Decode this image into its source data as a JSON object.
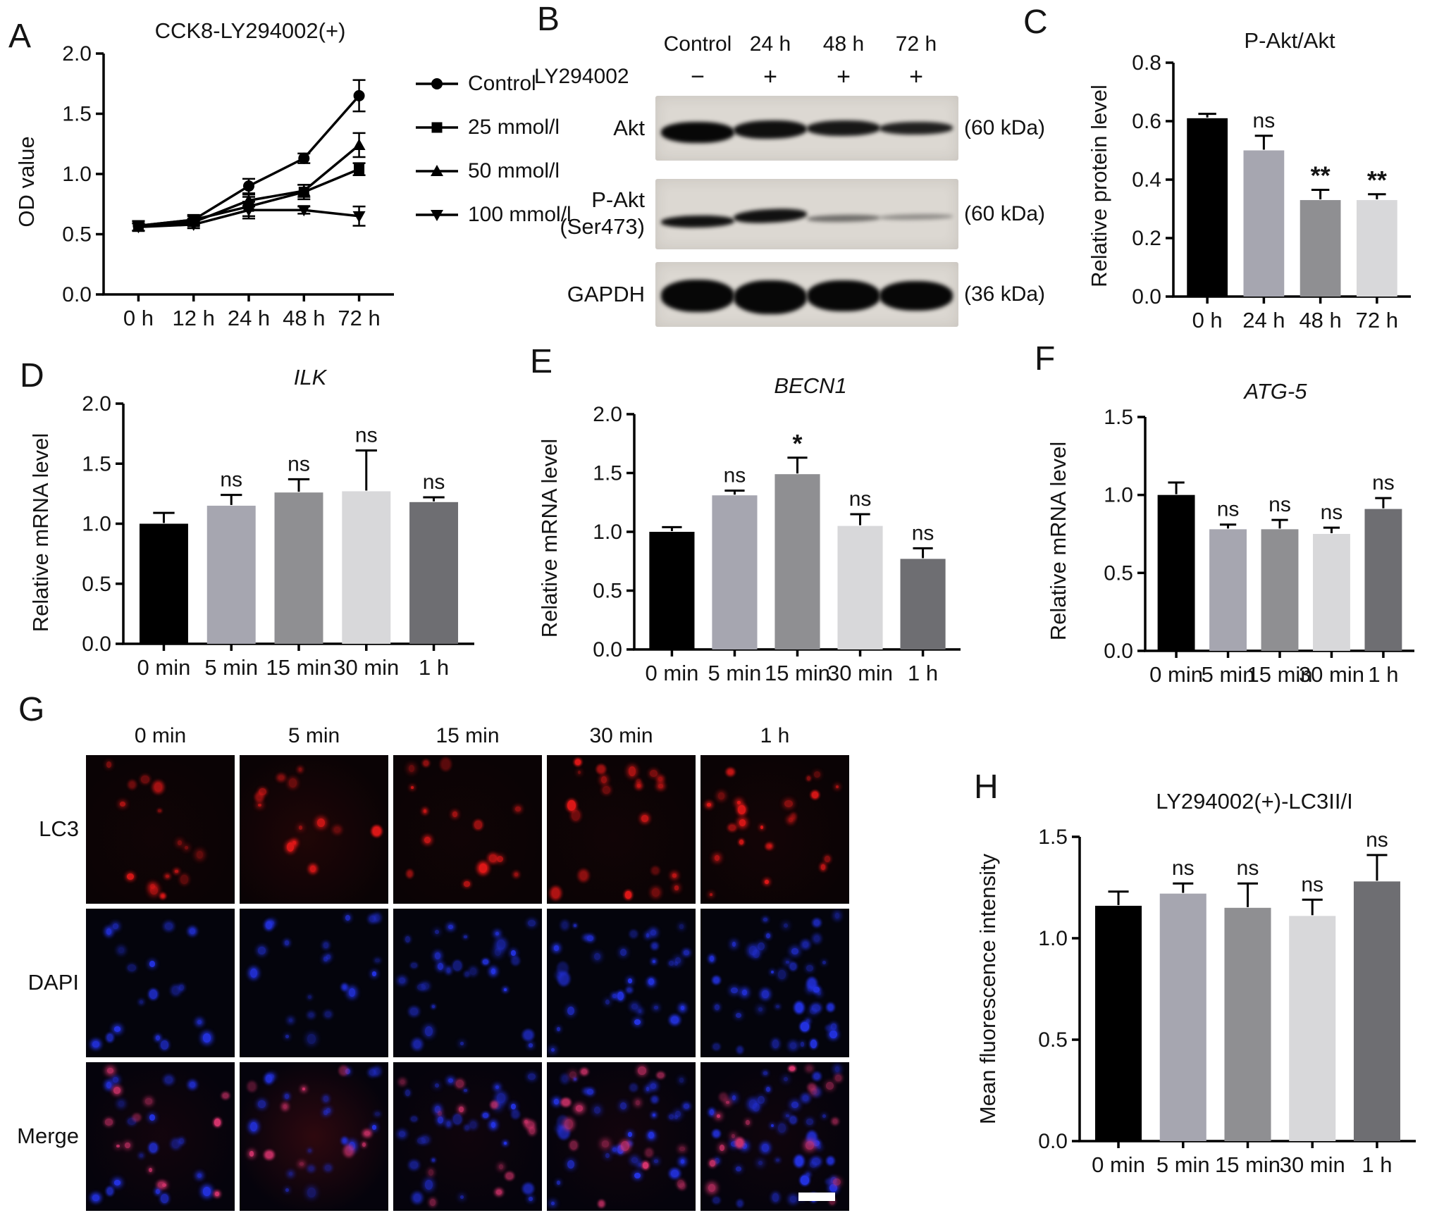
{
  "figure": {
    "background": "#ffffff"
  },
  "panels": {
    "a": {
      "letter": "A"
    },
    "b": {
      "letter": "B"
    },
    "c": {
      "letter": "C"
    },
    "d": {
      "letter": "D"
    },
    "e": {
      "letter": "E"
    },
    "f": {
      "letter": "F"
    },
    "g": {
      "letter": "G"
    },
    "h": {
      "letter": "H"
    }
  },
  "chart_data": [
    {
      "id": "A",
      "type": "line",
      "title": "CCK8-LY294002(+)",
      "ylabel": "OD value",
      "xlabel": "",
      "ylim": [
        0,
        2.0
      ],
      "yticks": [
        0,
        0.5,
        1.0,
        1.5,
        2.0
      ],
      "ytick_labels": [
        "0.0",
        "0.5",
        "1.0",
        "1.5",
        "2.0"
      ],
      "categories": [
        "0 h",
        "12 h",
        "24 h",
        "48 h",
        "72 h"
      ],
      "legend_position": "right",
      "series": [
        {
          "name": "Control",
          "marker": "circle",
          "values": [
            0.57,
            0.62,
            0.9,
            1.13,
            1.65
          ],
          "errors": [
            0.04,
            0.03,
            0.06,
            0.04,
            0.13
          ]
        },
        {
          "name": "25 mmol/l",
          "marker": "square",
          "values": [
            0.57,
            0.62,
            0.73,
            0.85,
            1.04
          ],
          "errors": [
            0.04,
            0.04,
            0.08,
            0.06,
            0.05
          ]
        },
        {
          "name": "50 mmol/l",
          "marker": "triangle-up",
          "values": [
            0.56,
            0.6,
            0.78,
            0.86,
            1.24
          ],
          "errors": [
            0.03,
            0.03,
            0.05,
            0.05,
            0.1
          ]
        },
        {
          "name": "100 mmol/l",
          "marker": "triangle-down",
          "values": [
            0.56,
            0.58,
            0.7,
            0.7,
            0.65
          ],
          "errors": [
            0.03,
            0.03,
            0.07,
            0.03,
            0.08
          ]
        }
      ]
    },
    {
      "id": "C",
      "type": "bar",
      "title": "P-Akt/Akt",
      "ylabel": "Relative protein level",
      "xlabel": "",
      "ylim": [
        0,
        0.8
      ],
      "yticks": [
        0,
        0.2,
        0.4,
        0.6,
        0.8
      ],
      "ytick_labels": [
        "0.0",
        "0.2",
        "0.4",
        "0.6",
        "0.8"
      ],
      "categories": [
        "0 h",
        "24 h",
        "48 h",
        "72 h"
      ],
      "values": [
        0.61,
        0.5,
        0.33,
        0.33
      ],
      "errors": [
        0.015,
        0.05,
        0.035,
        0.02
      ],
      "sig": [
        "",
        "ns",
        "**",
        "**"
      ],
      "colors": [
        "#000000",
        "#a6a6b0",
        "#8f8f92",
        "#d8d8da"
      ]
    },
    {
      "id": "D",
      "type": "bar",
      "title": "ILK",
      "title_italic": true,
      "ylabel": "Relative mRNA level",
      "xlabel": "",
      "ylim": [
        0,
        2.0
      ],
      "yticks": [
        0,
        0.5,
        1.0,
        1.5,
        2.0
      ],
      "ytick_labels": [
        "0.0",
        "0.5",
        "1.0",
        "1.5",
        "2.0"
      ],
      "categories": [
        "0 min",
        "5 min",
        "15 min",
        "30 min",
        "1 h"
      ],
      "values": [
        1.0,
        1.15,
        1.26,
        1.27,
        1.18
      ],
      "errors": [
        0.09,
        0.09,
        0.11,
        0.34,
        0.04
      ],
      "sig": [
        "",
        "ns",
        "ns",
        "ns",
        "ns"
      ],
      "colors": [
        "#000000",
        "#a6a6b0",
        "#8f8f92",
        "#d8d8da",
        "#6e6e72"
      ]
    },
    {
      "id": "E",
      "type": "bar",
      "title": "BECN1",
      "title_italic": true,
      "ylabel": "Relative mRNA level",
      "xlabel": "",
      "ylim": [
        0,
        2.0
      ],
      "yticks": [
        0,
        0.5,
        1.0,
        1.5,
        2.0
      ],
      "ytick_labels": [
        "0.0",
        "0.5",
        "1.0",
        "1.5",
        "2.0"
      ],
      "categories": [
        "0 min",
        "5 min",
        "15 min",
        "30 min",
        "1 h"
      ],
      "values": [
        1.0,
        1.31,
        1.49,
        1.05,
        0.77
      ],
      "errors": [
        0.04,
        0.04,
        0.14,
        0.1,
        0.09
      ],
      "sig": [
        "",
        "ns",
        "*",
        "ns",
        "ns"
      ],
      "colors": [
        "#000000",
        "#a6a6b0",
        "#8f8f92",
        "#d8d8da",
        "#6e6e72"
      ]
    },
    {
      "id": "F",
      "type": "bar",
      "title": "ATG-5",
      "title_italic": true,
      "ylabel": "Relative mRNA level",
      "xlabel": "",
      "ylim": [
        0,
        1.5
      ],
      "yticks": [
        0,
        0.5,
        1.0,
        1.5
      ],
      "ytick_labels": [
        "0.0",
        "0.5",
        "1.0",
        "1.5"
      ],
      "categories": [
        "0 min",
        "5 min",
        "15 min",
        "30 min",
        "1 h"
      ],
      "values": [
        1.0,
        0.78,
        0.78,
        0.75,
        0.91
      ],
      "errors": [
        0.08,
        0.03,
        0.06,
        0.04,
        0.07
      ],
      "sig": [
        "",
        "ns",
        "ns",
        "ns",
        "ns"
      ],
      "colors": [
        "#000000",
        "#a6a6b0",
        "#8f8f92",
        "#d8d8da",
        "#6e6e72"
      ]
    },
    {
      "id": "H",
      "type": "bar",
      "title": "LY294002(+)-LC3II/I",
      "ylabel": "Mean fluorescence intensity",
      "xlabel": "",
      "ylim": [
        0,
        1.5
      ],
      "yticks": [
        0,
        0.5,
        1.0,
        1.5
      ],
      "ytick_labels": [
        "0.0",
        "0.5",
        "1.0",
        "1.5"
      ],
      "categories": [
        "0 min",
        "5 min",
        "15 min",
        "30 min",
        "1 h"
      ],
      "values": [
        1.16,
        1.22,
        1.15,
        1.11,
        1.28
      ],
      "errors": [
        0.07,
        0.05,
        0.12,
        0.08,
        0.13
      ],
      "sig": [
        "",
        "ns",
        "ns",
        "ns",
        "ns"
      ],
      "colors": [
        "#000000",
        "#a6a6b0",
        "#8f8f92",
        "#d8d8da",
        "#6e6e72"
      ]
    }
  ],
  "western_blot": {
    "treatment_label": "LY294002",
    "col_headers": [
      "Control",
      "24 h",
      "48 h",
      "72 h"
    ],
    "treatment_signs": [
      "−",
      "+",
      "+",
      "+"
    ],
    "rows": [
      {
        "label": "Akt",
        "sublabel": "",
        "kda": "(60 kDa)",
        "band_thickness": [
          30,
          26,
          22,
          18
        ],
        "band_opacity": [
          1,
          0.96,
          0.92,
          0.88
        ],
        "band_dy": [
          4,
          0,
          -2,
          -2
        ],
        "band_tilt": [
          0,
          -1,
          -0.5,
          -0.5
        ]
      },
      {
        "label": "P-Akt",
        "sublabel": "(Ser473)",
        "kda": "(60 kDa)",
        "band_thickness": [
          17,
          19,
          10,
          8
        ],
        "band_opacity": [
          0.95,
          0.95,
          0.5,
          0.35
        ],
        "band_dy": [
          8,
          0,
          4,
          2
        ],
        "band_tilt": [
          -1,
          -3,
          -1,
          -1
        ]
      },
      {
        "label": "GAPDH",
        "sublabel": "",
        "kda": "(36 kDa)",
        "band_thickness": [
          46,
          48,
          44,
          42
        ],
        "band_opacity": [
          1,
          1,
          1,
          1
        ],
        "band_dy": [
          0,
          2,
          0,
          0
        ],
        "band_tilt": [
          0,
          0,
          0,
          0
        ]
      }
    ]
  },
  "microscopy": {
    "col_labels": [
      "0 min",
      "5 min",
      "15 min",
      "30 min",
      "1 h"
    ],
    "row_labels": [
      "LC3",
      "DAPI",
      "Merge"
    ],
    "lc3_dot_counts": [
      16,
      13,
      15,
      21,
      23
    ],
    "dapi_dot_counts": [
      18,
      21,
      30,
      36,
      46
    ],
    "merge_red_dot_counts": [
      13,
      10,
      13,
      17,
      19
    ],
    "red_color": "#e01818",
    "blue_color": "#2433e6",
    "merge_red_color": "#d8356f",
    "lc3_haze": [
      0.05,
      0.18,
      0.05,
      0.06,
      0.08
    ],
    "merge_haze": [
      0.1,
      0.3,
      0.08,
      0.1,
      0.08
    ],
    "has_scale_bar": true
  }
}
